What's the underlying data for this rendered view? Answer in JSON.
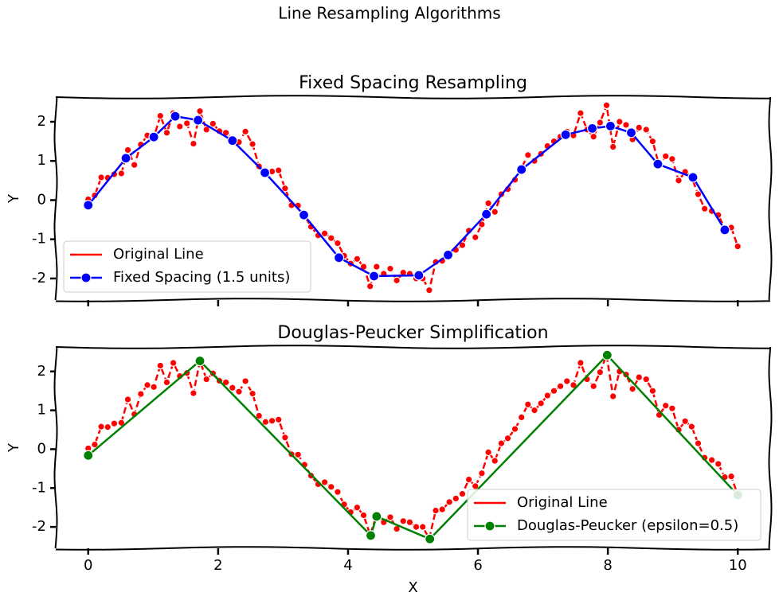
{
  "title": "Line Resampling Algorithms",
  "chart_data": [
    {
      "type": "line",
      "title": "Fixed Spacing Resampling",
      "ylabel": "Y",
      "xlim": [
        -0.5,
        10.5
      ],
      "ylim": [
        -2.55,
        2.63
      ],
      "xticks": [
        0,
        2,
        4,
        6,
        8,
        10
      ],
      "yticks": [
        -2,
        -1,
        0,
        1,
        2
      ],
      "xticklabels": false,
      "legend": "lower left",
      "series": [
        {
          "name": "Original Line",
          "color": "#ff0000",
          "linestyle": "dashed",
          "marker": false,
          "x": [
            0,
            0.1,
            0.2,
            0.3,
            0.4,
            0.51,
            0.61,
            0.71,
            0.81,
            0.91,
            1.01,
            1.11,
            1.21,
            1.31,
            1.41,
            1.52,
            1.62,
            1.72,
            1.82,
            1.92,
            2.02,
            2.12,
            2.22,
            2.32,
            2.42,
            2.53,
            2.63,
            2.73,
            2.83,
            2.93,
            3.03,
            3.13,
            3.23,
            3.33,
            3.43,
            3.54,
            3.64,
            3.74,
            3.84,
            3.94,
            4.04,
            4.14,
            4.24,
            4.34,
            4.44,
            4.55,
            4.65,
            4.75,
            4.85,
            4.95,
            5.05,
            5.15,
            5.25,
            5.35,
            5.45,
            5.56,
            5.66,
            5.76,
            5.86,
            5.96,
            6.06,
            6.16,
            6.26,
            6.36,
            6.46,
            6.57,
            6.67,
            6.77,
            6.87,
            6.97,
            7.07,
            7.17,
            7.27,
            7.37,
            7.47,
            7.58,
            7.68,
            7.78,
            7.88,
            7.98,
            8.08,
            8.18,
            8.28,
            8.38,
            8.48,
            8.59,
            8.69,
            8.79,
            8.89,
            8.99,
            9.09,
            9.19,
            9.29,
            9.39,
            9.49,
            9.6,
            9.7,
            9.8,
            9.9,
            10
          ],
          "values": [
            0.02,
            0.12,
            0.58,
            0.57,
            0.66,
            0.68,
            1.28,
            0.9,
            1.42,
            1.65,
            1.6,
            2.15,
            1.72,
            2.22,
            1.88,
            1.96,
            1.44,
            2.27,
            1.8,
            1.95,
            1.76,
            1.72,
            1.58,
            1.48,
            1.75,
            1.43,
            0.86,
            0.7,
            0.73,
            0.76,
            0.3,
            -0.13,
            -0.14,
            -0.4,
            -0.68,
            -0.9,
            -0.85,
            -0.97,
            -1.1,
            -1.42,
            -1.62,
            -1.5,
            -1.7,
            -2.2,
            -1.7,
            -1.88,
            -1.75,
            -2.05,
            -1.85,
            -1.88,
            -2.0,
            -2.0,
            -2.3,
            -1.58,
            -1.55,
            -1.36,
            -1.27,
            -1.15,
            -0.78,
            -0.95,
            -0.62,
            -0.08,
            -0.3,
            0.15,
            0.28,
            0.52,
            0.82,
            1.15,
            1.0,
            1.18,
            1.38,
            1.5,
            1.62,
            1.75,
            1.65,
            2.22,
            1.8,
            1.62,
            1.98,
            2.42,
            1.36,
            2.0,
            1.92,
            1.55,
            1.85,
            1.8,
            1.5,
            0.88,
            1.12,
            1.05,
            0.5,
            0.72,
            0.58,
            0.15,
            -0.22,
            -0.28,
            -0.38,
            -0.72,
            -0.7,
            -1.18
          ]
        },
        {
          "name": "Fixed Spacing (1.5 units)",
          "color": "#0000ff",
          "linestyle": "solid",
          "marker": true,
          "x": [
            0,
            0.58,
            1.01,
            1.34,
            1.69,
            2.22,
            2.72,
            3.32,
            3.86,
            4.4,
            5.09,
            5.54,
            6.13,
            6.67,
            7.35,
            7.76,
            8.04,
            8.36,
            8.77,
            9.31,
            9.8
          ],
          "values": [
            -0.13,
            1.07,
            1.61,
            2.14,
            2.04,
            1.52,
            0.7,
            -0.38,
            -1.47,
            -1.94,
            -1.92,
            -1.4,
            -0.36,
            0.78,
            1.67,
            1.83,
            1.89,
            1.72,
            0.92,
            0.58,
            -0.76
          ]
        }
      ]
    },
    {
      "type": "line",
      "title": "Douglas-Peucker Simplification",
      "xlabel": "X",
      "ylabel": "Y",
      "xlim": [
        -0.5,
        10.5
      ],
      "ylim": [
        -2.55,
        2.63
      ],
      "xticks": [
        0,
        2,
        4,
        6,
        8,
        10
      ],
      "yticks": [
        -2,
        -1,
        0,
        1,
        2
      ],
      "xticklabels": true,
      "legend": "lower right",
      "series": [
        {
          "name": "Original Line",
          "color": "#ff0000",
          "linestyle": "dashed",
          "marker": false,
          "x": [
            0,
            0.1,
            0.2,
            0.3,
            0.4,
            0.51,
            0.61,
            0.71,
            0.81,
            0.91,
            1.01,
            1.11,
            1.21,
            1.31,
            1.41,
            1.52,
            1.62,
            1.72,
            1.82,
            1.92,
            2.02,
            2.12,
            2.22,
            2.32,
            2.42,
            2.53,
            2.63,
            2.73,
            2.83,
            2.93,
            3.03,
            3.13,
            3.23,
            3.33,
            3.43,
            3.54,
            3.64,
            3.74,
            3.84,
            3.94,
            4.04,
            4.14,
            4.24,
            4.34,
            4.44,
            4.55,
            4.65,
            4.75,
            4.85,
            4.95,
            5.05,
            5.15,
            5.25,
            5.35,
            5.45,
            5.56,
            5.66,
            5.76,
            5.86,
            5.96,
            6.06,
            6.16,
            6.26,
            6.36,
            6.46,
            6.57,
            6.67,
            6.77,
            6.87,
            6.97,
            7.07,
            7.17,
            7.27,
            7.37,
            7.47,
            7.58,
            7.68,
            7.78,
            7.88,
            7.98,
            8.08,
            8.18,
            8.28,
            8.38,
            8.48,
            8.59,
            8.69,
            8.79,
            8.89,
            8.99,
            9.09,
            9.19,
            9.29,
            9.39,
            9.49,
            9.6,
            9.7,
            9.8,
            9.9,
            10
          ],
          "values": [
            0.02,
            0.12,
            0.58,
            0.57,
            0.66,
            0.68,
            1.28,
            0.9,
            1.42,
            1.65,
            1.6,
            2.15,
            1.72,
            2.22,
            1.88,
            1.96,
            1.44,
            2.27,
            1.8,
            1.95,
            1.76,
            1.72,
            1.58,
            1.48,
            1.75,
            1.43,
            0.86,
            0.7,
            0.73,
            0.76,
            0.3,
            -0.13,
            -0.14,
            -0.4,
            -0.68,
            -0.9,
            -0.85,
            -0.97,
            -1.1,
            -1.42,
            -1.62,
            -1.5,
            -1.7,
            -2.2,
            -1.7,
            -1.88,
            -1.75,
            -2.05,
            -1.85,
            -1.88,
            -2.0,
            -2.0,
            -2.3,
            -1.58,
            -1.55,
            -1.36,
            -1.27,
            -1.15,
            -0.78,
            -0.95,
            -0.62,
            -0.08,
            -0.3,
            0.15,
            0.28,
            0.52,
            0.82,
            1.15,
            1.0,
            1.18,
            1.38,
            1.5,
            1.62,
            1.75,
            1.65,
            2.22,
            1.8,
            1.62,
            1.98,
            2.42,
            1.36,
            2.0,
            1.92,
            1.55,
            1.85,
            1.8,
            1.5,
            0.88,
            1.12,
            1.05,
            0.5,
            0.72,
            0.58,
            0.15,
            -0.22,
            -0.28,
            -0.38,
            -0.72,
            -0.7,
            -1.18
          ]
        },
        {
          "name": "Douglas-Peucker (epsilon=0.5)",
          "color": "#008000",
          "linestyle": "solid",
          "marker": true,
          "x": [
            0,
            1.72,
            4.35,
            4.44,
            5.26,
            7.99,
            10
          ],
          "values": [
            -0.16,
            2.27,
            -2.22,
            -1.73,
            -2.31,
            2.42,
            -1.18
          ]
        }
      ]
    }
  ]
}
